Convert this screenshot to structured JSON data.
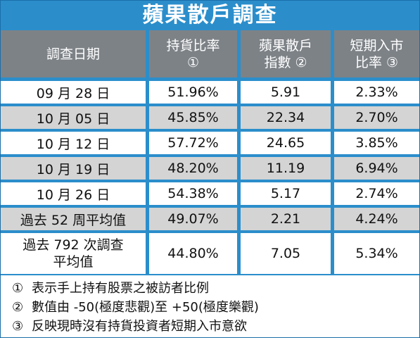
{
  "chart_data": {
    "type": "table",
    "title": "蘋果散戶調查",
    "columns": [
      {
        "lines": [
          "調查日期"
        ]
      },
      {
        "lines": [
          "持貨比率",
          "①"
        ]
      },
      {
        "lines": [
          "蘋果散戶",
          "指數 ②"
        ]
      },
      {
        "lines": [
          "短期入市",
          "比率 ③"
        ]
      }
    ],
    "rows": [
      {
        "lines": [
          "09 月 28 日"
        ],
        "holding": "51.96%",
        "index": "5.91",
        "entry": "2.33%"
      },
      {
        "lines": [
          "10 月 05 日"
        ],
        "holding": "45.85%",
        "index": "22.34",
        "entry": "2.70%"
      },
      {
        "lines": [
          "10 月 12 日"
        ],
        "holding": "57.72%",
        "index": "24.65",
        "entry": "3.85%"
      },
      {
        "lines": [
          "10 月 19 日"
        ],
        "holding": "48.20%",
        "index": "11.19",
        "entry": "6.94%"
      },
      {
        "lines": [
          "10 月 26 日"
        ],
        "holding": "54.38%",
        "index": "5.17",
        "entry": "2.74%"
      },
      {
        "lines": [
          "過去 52 周平均值"
        ],
        "holding": "49.07%",
        "index": "2.21",
        "entry": "4.24%"
      },
      {
        "lines": [
          "過去 792 次調查",
          "平均值"
        ],
        "holding": "44.80%",
        "index": "7.05",
        "entry": "5.34%"
      }
    ],
    "notes": [
      {
        "mark": "①",
        "text": "表示手上持有股票之被訪者比例"
      },
      {
        "mark": "②",
        "text": "數值由 -50(極度悲觀)至 +50(極度樂觀)"
      },
      {
        "mark": "③",
        "text": "反映現時沒有持貨投資者短期入市意欲"
      }
    ]
  },
  "colors": {
    "frame_blue": "#2b8ecb",
    "header_gray": "#7d8287",
    "row_alt_gray": "#d4d4d4",
    "row_white": "#ffffff"
  }
}
